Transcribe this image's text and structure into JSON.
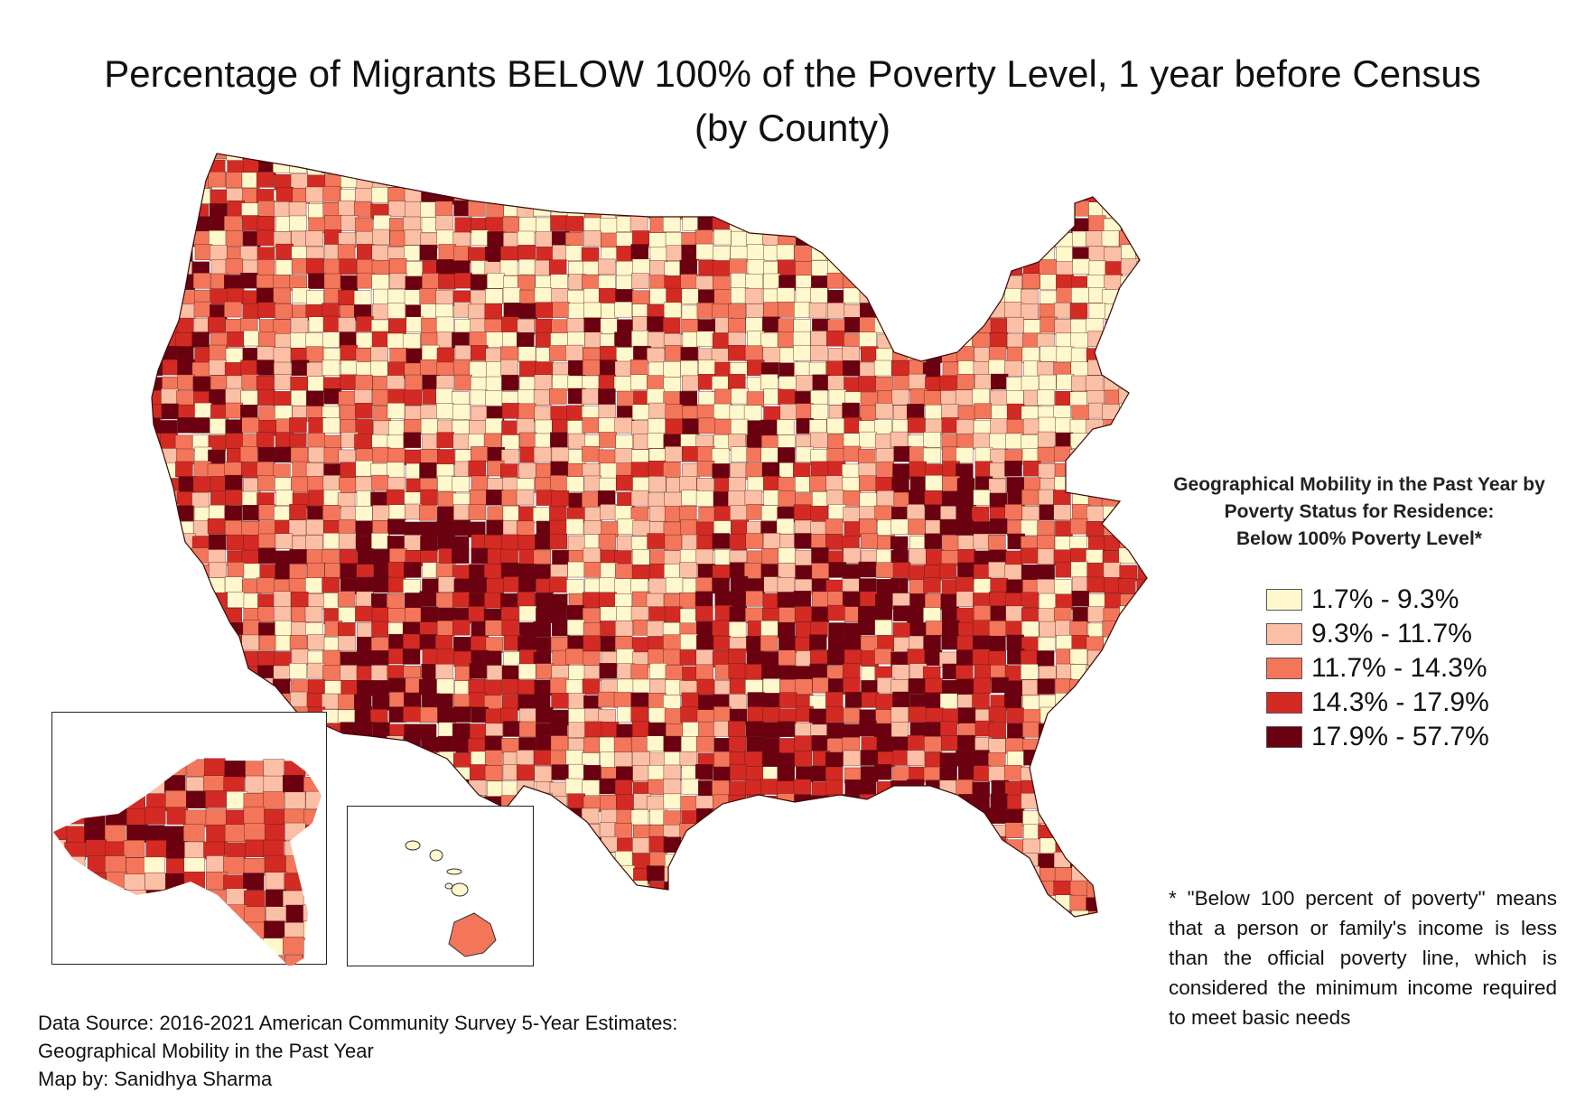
{
  "title": {
    "line1": "Percentage of Migrants BELOW 100% of the Poverty Level,  1 year before Census",
    "line2": "(by County)"
  },
  "legend": {
    "title_lines": [
      "Geographical Mobility in the Past Year by",
      "Poverty Status for Residence:",
      "Below 100% Poverty Level*"
    ],
    "classes": [
      {
        "label": "1.7% - 9.3%",
        "color": "#fff8cc"
      },
      {
        "label": "9.3% - 11.7%",
        "color": "#fbbfa5"
      },
      {
        "label": "11.7% - 14.3%",
        "color": "#f3765a"
      },
      {
        "label": "14.3% - 17.9%",
        "color": "#d42a24"
      },
      {
        "label": "17.9% - 57.7%",
        "color": "#6b0010"
      }
    ]
  },
  "footnote": "* \"Below 100 percent of poverty\" means that a person or family's income is less than the official poverty line, which is considered the minimum income required to meet basic needs",
  "source": {
    "line1": "Data Source: 2016-2021 American Community Survey 5-Year Estimates:",
    "line2": "Geographical Mobility in the Past Year",
    "line3": "Map by: Sanidhya Sharma"
  }
}
